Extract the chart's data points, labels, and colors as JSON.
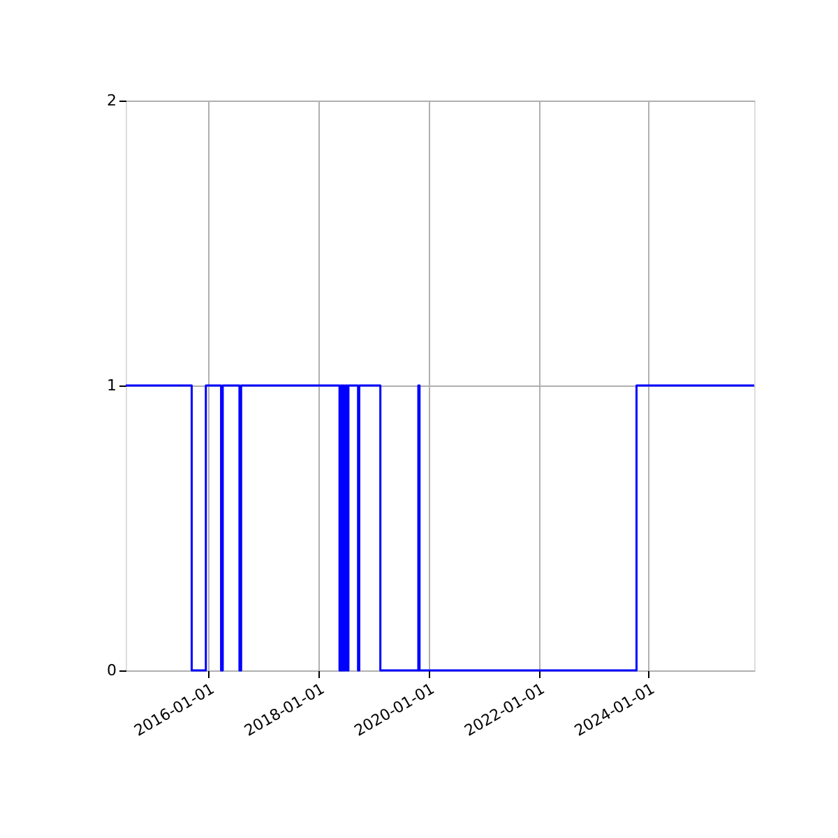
{
  "chart_data": {
    "type": "step",
    "x": [
      "2014-07-01",
      "2015-09-12",
      "2015-12-15",
      "2016-03-25",
      "2016-04-05",
      "2016-07-25",
      "2016-08-05",
      "2018-05-20",
      "2018-05-28",
      "2018-06-05",
      "2018-06-12",
      "2018-06-20",
      "2018-06-28",
      "2018-07-10",
      "2018-07-18",
      "2018-09-20",
      "2018-09-28",
      "2019-02-15",
      "2019-10-25",
      "2019-11-02",
      "2023-10-12",
      "2025-12-01"
    ],
    "series": [
      {
        "color": "#0000ff",
        "values": [
          1,
          0,
          1,
          0,
          1,
          0,
          1,
          0,
          1,
          0,
          1,
          0,
          1,
          0,
          1,
          0,
          1,
          0,
          1,
          0,
          1,
          1
        ]
      }
    ],
    "xlim": [
      "2014-07-01",
      "2025-12-01"
    ],
    "xticks": [
      "2016-01-01",
      "2018-01-01",
      "2020-01-01",
      "2022-01-01",
      "2024-01-01"
    ],
    "ylim": [
      0,
      2
    ],
    "yticks": [
      0,
      1,
      2
    ],
    "grid": true,
    "line_style": "solid"
  }
}
